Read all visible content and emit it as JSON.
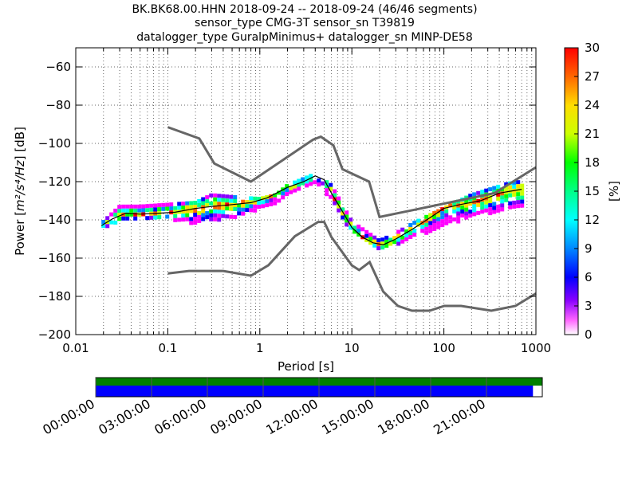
{
  "chart_data": {
    "type": "heatmap",
    "title_lines": [
      "BK.BK68.00.HHN   2018-09-24 -- 2018-09-24  (46/46 segments)",
      "sensor_type CMG-3T sensor_sn T39819",
      "datalogger_type GuralpMinimus+ datalogger_sn MINP-DE58"
    ],
    "xlabel": "Period [s]",
    "ylabel_prefix": "Power [",
    "ylabel_math": "m²/s⁴/Hz",
    "ylabel_suffix": "] [dB]",
    "x_scale": "log",
    "xlim": [
      0.01,
      1000
    ],
    "ylim": [
      -200,
      -50
    ],
    "x_ticks": [
      0.01,
      0.1,
      1,
      10,
      100,
      1000
    ],
    "x_tick_labels": [
      "0.01",
      "0.1",
      "1",
      "10",
      "100",
      "1000"
    ],
    "y_ticks": [
      -200,
      -180,
      -160,
      -140,
      -120,
      -100,
      -80,
      -60
    ],
    "y_tick_labels": [
      "−200",
      "−180",
      "−160",
      "−140",
      "−120",
      "−100",
      "−80",
      "−60"
    ],
    "grid": true,
    "colorbar": {
      "label": "[%]",
      "min": 0,
      "max": 30,
      "ticks": [
        0,
        3,
        6,
        9,
        12,
        15,
        18,
        21,
        24,
        27,
        30
      ],
      "tick_labels": [
        "0",
        "3",
        "6",
        "9",
        "12",
        "15",
        "18",
        "21",
        "24",
        "27",
        "30"
      ]
    },
    "noise_model_high": {
      "period": [
        0.1,
        0.22,
        0.32,
        0.8,
        3.8,
        4.6,
        6.3,
        7.9,
        15.4,
        20,
        354.8,
        1000
      ],
      "db": [
        -91.5,
        -97.4,
        -110.5,
        -120,
        -98,
        -96.5,
        -101,
        -113.5,
        -120,
        -138.5,
        -126,
        -112.5
      ]
    },
    "noise_model_low": {
      "period": [
        0.1,
        0.17,
        0.4,
        0.8,
        1.24,
        2.4,
        4.3,
        5,
        6,
        10,
        12,
        15.6,
        21.9,
        31.6,
        45,
        70,
        101,
        154,
        328,
        600,
        1000
      ],
      "db": [
        -168,
        -166.7,
        -166.7,
        -169.2,
        -163.7,
        -148.6,
        -141.1,
        -141.1,
        -149,
        -163.8,
        -166.2,
        -162.1,
        -177.5,
        -185,
        -187.5,
        -187.5,
        -185,
        -185,
        -187.5,
        -185,
        -178.5
      ]
    },
    "mode_curve": {
      "period": [
        0.019,
        0.025,
        0.035,
        0.05,
        0.08,
        0.12,
        0.2,
        0.3,
        0.5,
        0.8,
        1.2,
        2,
        3,
        4,
        5,
        6,
        8,
        10,
        13,
        17,
        22,
        30,
        45,
        70,
        100,
        150,
        250,
        400,
        700
      ],
      "db": [
        -143,
        -139.5,
        -136.5,
        -137,
        -136.5,
        -136,
        -134,
        -133,
        -132,
        -131,
        -128.5,
        -123,
        -120,
        -117,
        -119,
        -126,
        -136,
        -144,
        -149,
        -152,
        -153,
        -150,
        -145,
        -139,
        -134,
        -132,
        -130,
        -126,
        -124
      ]
    },
    "spread_db": {
      "period": [
        0.019,
        0.03,
        0.05,
        0.1,
        0.2,
        0.3,
        0.5,
        1,
        1.5,
        2,
        4,
        6,
        10,
        20,
        30,
        50,
        100,
        200,
        500,
        700
      ],
      "lower": [
        -144,
        -140,
        -138,
        -139,
        -141,
        -140,
        -138,
        -134,
        -131,
        -126,
        -120,
        -128,
        -146,
        -156,
        -152,
        -148,
        -142,
        -138,
        -134,
        -132
      ],
      "upper": [
        -141,
        -132,
        -132,
        -131,
        -130,
        -126,
        -127,
        -128,
        -126,
        -121,
        -115,
        -121,
        -140,
        -150,
        -146,
        -140,
        -133,
        -126,
        -120,
        -119
      ]
    }
  },
  "time_axis": {
    "tick_labels": [
      "00:00:00",
      "03:00:00",
      "06:00:00",
      "09:00:00",
      "12:00:00",
      "15:00:00",
      "18:00:00",
      "21:00:00"
    ],
    "hours": [
      0,
      3,
      6,
      9,
      12,
      15,
      18,
      21
    ],
    "range_hours": [
      0,
      24
    ],
    "coverage_end_hour": 23.5,
    "data_bar_color": "#008000",
    "coverage_bar_color": "#0000ff"
  },
  "colors": {
    "noise_model": "#666666",
    "mode_curve": "#000000",
    "grid": "#666666"
  }
}
